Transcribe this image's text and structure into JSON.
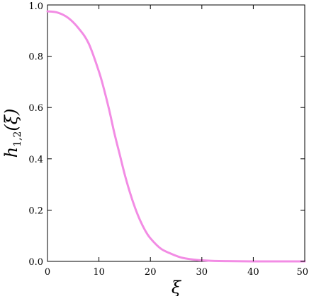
{
  "chart_data": {
    "type": "line",
    "xlabel": "ξ",
    "ylabel": "h",
    "ylabel_subscript": "1,2",
    "ylabel_argument": "(ξ)",
    "xlim": [
      0,
      50
    ],
    "ylim": [
      0,
      1
    ],
    "x_ticks": [
      "0",
      "10",
      "20",
      "30",
      "40",
      "50"
    ],
    "y_ticks": [
      "0.0",
      "0.2",
      "0.4",
      "0.6",
      "0.8",
      "1.0"
    ],
    "grid": false,
    "legend": "none",
    "series": [
      {
        "color": "#f28ce4",
        "x": [
          0,
          2,
          4,
          6,
          8,
          10,
          11,
          12,
          13,
          14,
          15,
          16,
          17,
          18,
          19,
          20,
          22,
          24,
          26,
          28,
          30,
          32,
          35,
          40,
          45,
          50
        ],
        "y": [
          0.975,
          0.97,
          0.95,
          0.91,
          0.85,
          0.74,
          0.67,
          0.59,
          0.5,
          0.42,
          0.34,
          0.27,
          0.21,
          0.16,
          0.12,
          0.09,
          0.05,
          0.03,
          0.015,
          0.008,
          0.004,
          0.002,
          0.001,
          0.0,
          0.0,
          0.0
        ]
      }
    ]
  }
}
